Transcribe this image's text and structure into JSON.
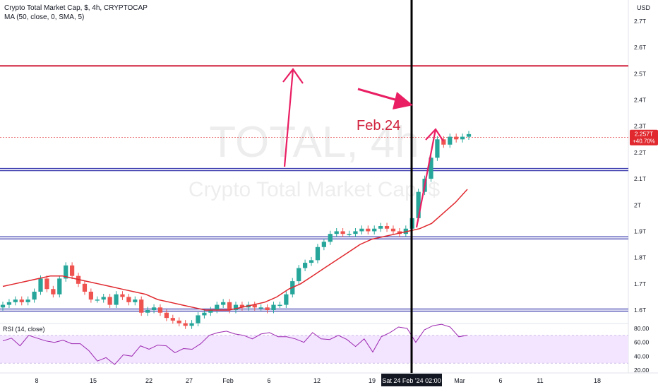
{
  "header": {
    "symbol_line": "Crypto Total Market Cap, $, 4h, CRYPTOCAP",
    "indicator_line": "MA (50, close, 0, SMA, 5)",
    "currency": "USD"
  },
  "watermark": {
    "ticker": "TOTAL, 4h",
    "name": "Crypto Total Market Cap, $"
  },
  "annotation": {
    "label": "Feb.24"
  },
  "price_badge": {
    "price": "2.257T",
    "change": "+40.70%"
  },
  "rsi": {
    "label": "RSI (14, close)",
    "ticks": [
      "80.00",
      "60.00",
      "40.00",
      "20.00"
    ]
  },
  "crosshair": {
    "date_label": "Sat 24 Feb '24  02:00"
  },
  "x_axis": {
    "labels": [
      "8",
      "15",
      "22",
      "27",
      "Feb",
      "6",
      "12",
      "19",
      "Mar",
      "6",
      "11",
      "18"
    ]
  },
  "colors": {
    "candle_up": "#26a69a",
    "candle_down": "#ef5350",
    "ma_line": "#e0282e",
    "resistance": "#d0213c",
    "support": "#3f3fb0",
    "annotation": "#e91e63",
    "rsi_line": "#9c27b0",
    "rsi_band": "#f3e5ff",
    "price_badge": "#e0282e"
  },
  "chart_data": {
    "type": "candlestick",
    "timeframe": "4h",
    "y_unit": "T USD",
    "y_ticks": [
      1.6,
      1.7,
      1.8,
      1.9,
      2.0,
      2.1,
      2.2,
      2.3,
      2.4,
      2.5,
      2.6,
      2.7
    ],
    "ylim": [
      1.56,
      2.75
    ],
    "horizontal_levels": [
      {
        "value": 2.53,
        "color": "resistance"
      },
      {
        "value": 2.135,
        "color": "support"
      },
      {
        "value": 1.875,
        "color": "support"
      },
      {
        "value": 1.6,
        "color": "support"
      }
    ],
    "close_series": [
      1.62,
      1.63,
      1.64,
      1.63,
      1.64,
      1.67,
      1.72,
      1.68,
      1.66,
      1.72,
      1.77,
      1.73,
      1.7,
      1.67,
      1.64,
      1.64,
      1.65,
      1.62,
      1.66,
      1.65,
      1.63,
      1.64,
      1.59,
      1.6,
      1.61,
      1.59,
      1.57,
      1.56,
      1.55,
      1.54,
      1.55,
      1.58,
      1.59,
      1.6,
      1.62,
      1.63,
      1.6,
      1.62,
      1.61,
      1.62,
      1.61,
      1.61,
      1.6,
      1.62,
      1.62,
      1.66,
      1.71,
      1.76,
      1.78,
      1.79,
      1.84,
      1.86,
      1.89,
      1.9,
      1.89,
      1.89,
      1.9,
      1.91,
      1.9,
      1.91,
      1.92,
      1.91,
      1.9,
      1.89,
      1.91,
      1.95,
      2.05,
      2.1,
      2.18,
      2.25,
      2.23,
      2.26,
      2.25,
      2.26,
      2.27
    ],
    "ma_series": [
      1.69,
      1.7,
      1.71,
      1.72,
      1.73,
      1.73,
      1.72,
      1.71,
      1.7,
      1.69,
      1.68,
      1.67,
      1.66,
      1.64,
      1.63,
      1.62,
      1.61,
      1.6,
      1.6,
      1.6,
      1.61,
      1.62,
      1.63,
      1.65,
      1.68,
      1.7,
      1.73,
      1.76,
      1.79,
      1.82,
      1.85,
      1.87,
      1.88,
      1.89,
      1.9,
      1.91,
      1.93,
      1.97,
      2.01,
      2.06
    ],
    "rsi_series": [
      62,
      66,
      55,
      70,
      66,
      62,
      60,
      63,
      58,
      58,
      48,
      33,
      38,
      28,
      42,
      40,
      55,
      50,
      56,
      55,
      45,
      51,
      50,
      58,
      70,
      74,
      76,
      72,
      70,
      65,
      72,
      74,
      68,
      68,
      65,
      60,
      74,
      65,
      64,
      70,
      64,
      54,
      65,
      46,
      68,
      74,
      82,
      80,
      60,
      78,
      84,
      86,
      82,
      68,
      70
    ],
    "crosshair_date": "Sat 24 Feb '24 02:00",
    "last_price": 2.257,
    "change_percent": 40.7
  }
}
